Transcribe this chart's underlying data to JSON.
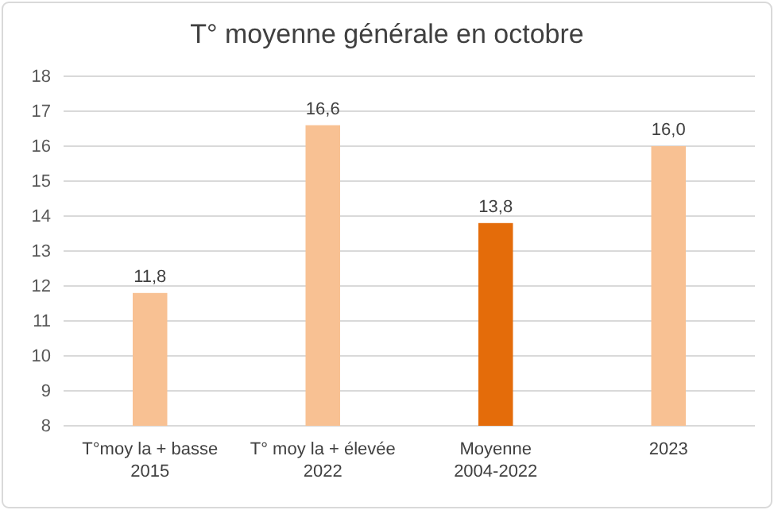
{
  "chart_data": {
    "type": "bar",
    "title": "T° moyenne générale en octobre",
    "categories": [
      "T°moy la + basse\n2015",
      "T° moy la + élevée\n2022",
      "Moyenne\n2004-2022",
      "2023"
    ],
    "values": [
      11.8,
      16.6,
      13.8,
      16.0
    ],
    "colors": [
      "#f8c193",
      "#f8c193",
      "#e46c0a",
      "#f8c193"
    ],
    "value_labels": [
      "11,8",
      "16,6",
      "13,8",
      "16,0"
    ],
    "ylim": [
      8,
      18
    ],
    "yticks": [
      8,
      9,
      10,
      11,
      12,
      13,
      14,
      15,
      16,
      17,
      18
    ],
    "grid": "y"
  }
}
